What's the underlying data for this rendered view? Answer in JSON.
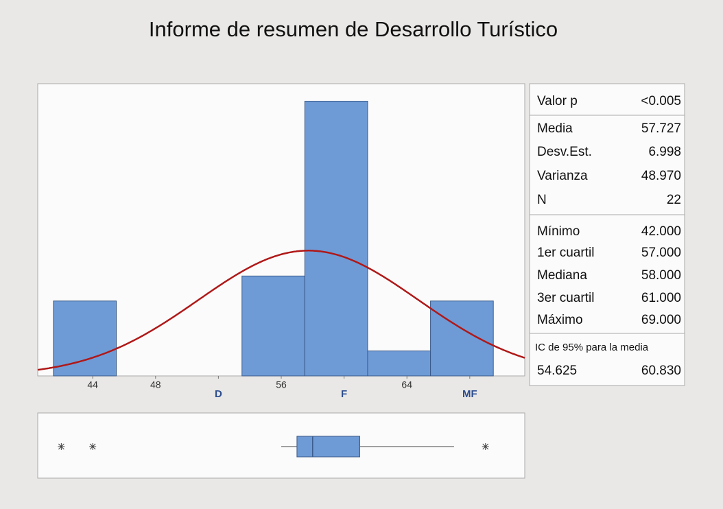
{
  "title": "Informe de resumen de Desarrollo Turístico",
  "chart_data": [
    {
      "type": "histogram",
      "bins": [
        41.5,
        45.5,
        49.5,
        53.5,
        57.5,
        61.5,
        65.5,
        69.5
      ],
      "values": [
        3,
        0,
        0,
        4,
        11,
        1,
        3
      ],
      "color": "#6e9bd6",
      "curve_color": "#b01818",
      "fit": "normal",
      "xlim": [
        40.5,
        71.5
      ],
      "ylim": [
        0,
        11.7
      ],
      "xticks": [
        44,
        48,
        {
          "value": 52,
          "label": "D"
        },
        56,
        {
          "value": 60,
          "label": "F"
        },
        64,
        {
          "value": 68,
          "label": "MF"
        }
      ]
    },
    {
      "type": "box",
      "color": "#6e9bd6",
      "whisker_low": 56,
      "q1": 57,
      "median": 58,
      "q3": 61,
      "whisker_high": 67,
      "outliers": [
        42,
        44,
        69
      ],
      "xlim": [
        40.5,
        71.5
      ]
    }
  ],
  "stats": {
    "sections": [
      [
        {
          "label": "Valor p",
          "value": "<0.005"
        }
      ],
      [
        {
          "label": "Media",
          "value": "57.727"
        },
        {
          "label": "Desv.Est.",
          "value": "6.998"
        },
        {
          "label": "Varianza",
          "value": "48.970"
        },
        {
          "label": "N",
          "value": "22"
        }
      ],
      [
        {
          "label": "Mínimo",
          "value": "42.000"
        },
        {
          "label": "1er cuartil",
          "value": "57.000"
        },
        {
          "label": "Mediana",
          "value": "58.000"
        },
        {
          "label": "3er cuartil",
          "value": "61.000"
        },
        {
          "label": "Máximo",
          "value": "69.000"
        }
      ]
    ],
    "ci": {
      "title": "IC de 95% para la media",
      "values": [
        "54.625",
        "60.830"
      ]
    }
  }
}
